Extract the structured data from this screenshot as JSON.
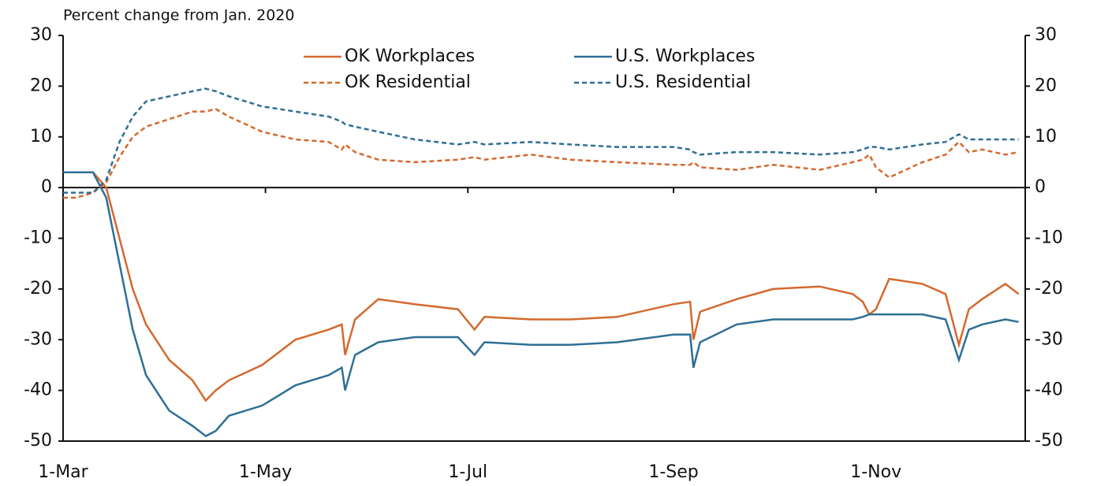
{
  "chart_data": {
    "type": "line",
    "ylabel": "Percent change from Jan. 2020",
    "x": [
      "1-Mar",
      "5-Mar",
      "10-Mar",
      "14-Mar",
      "18-Mar",
      "22-Mar",
      "26-Mar",
      "2-Apr",
      "9-Apr",
      "13-Apr",
      "16-Apr",
      "20-Apr",
      "30-Apr",
      "10-May",
      "20-May",
      "24-May",
      "25-May",
      "28-May",
      "4-Jun",
      "15-Jun",
      "28-Jun",
      "3-Jul",
      "6-Jul",
      "20-Jul",
      "1-Aug",
      "15-Aug",
      "1-Sep",
      "6-Sep",
      "7-Sep",
      "9-Sep",
      "20-Sep",
      "1-Oct",
      "15-Oct",
      "25-Oct",
      "28-Oct",
      "30-Oct",
      "1-Nov",
      "5-Nov",
      "15-Nov",
      "22-Nov",
      "26-Nov",
      "29-Nov",
      "3-Dec",
      "10-Dec",
      "14-Dec"
    ],
    "series": [
      {
        "name": "OK Workplaces",
        "color": "#d4692e",
        "style": "solid",
        "values": [
          3,
          3,
          3,
          0,
          -10,
          -20,
          -27,
          -34,
          -38,
          -42,
          -40,
          -38,
          -35,
          -30,
          -28,
          -27,
          -33,
          -26,
          -22,
          -23,
          -24,
          -28,
          -25.5,
          -26,
          -26,
          -25.5,
          -23,
          -22.5,
          -30,
          -24.5,
          -22,
          -20,
          -19.5,
          -21,
          -22.5,
          -25,
          -24,
          -18,
          -19,
          -21,
          -31,
          -24,
          -22,
          -19,
          -21
        ]
      },
      {
        "name": "U.S. Workplaces",
        "color": "#2e6f94",
        "style": "solid",
        "values": [
          3,
          3,
          3,
          -2,
          -15,
          -28,
          -37,
          -44,
          -47,
          -49,
          -48,
          -45,
          -43,
          -39,
          -37,
          -35.5,
          -40,
          -33,
          -30.5,
          -29.5,
          -29.5,
          -33,
          -30.5,
          -31,
          -31,
          -30.5,
          -29,
          -29,
          -35.5,
          -30.5,
          -27,
          -26,
          -26,
          -26,
          -25.5,
          -25,
          -25,
          -25,
          -25,
          -26,
          -34,
          -28,
          -27,
          -26,
          -26.5
        ]
      },
      {
        "name": "OK Residential",
        "color": "#d4692e",
        "style": "dashed",
        "values": [
          -2,
          -2,
          -1,
          1,
          6,
          10,
          12,
          13.5,
          15,
          15,
          15.5,
          14,
          11,
          9.5,
          9,
          7.5,
          8.5,
          7,
          5.5,
          5,
          5.5,
          6,
          5.5,
          6.5,
          5.5,
          5,
          4.5,
          4.5,
          5,
          4,
          3.5,
          4.5,
          3.5,
          5,
          5.5,
          6.5,
          4,
          2,
          5,
          6.5,
          9,
          7,
          7.5,
          6.5,
          7
        ]
      },
      {
        "name": "U.S. Residential",
        "color": "#2e6f94",
        "style": "dashed",
        "values": [
          -1,
          -1,
          -1,
          1.5,
          9,
          14,
          17,
          18,
          19,
          19.5,
          19,
          18,
          16,
          15,
          14,
          13,
          12.5,
          12,
          11,
          9.5,
          8.5,
          9,
          8.5,
          9,
          8.5,
          8,
          8,
          7.5,
          7,
          6.5,
          7,
          7,
          6.5,
          7,
          7.5,
          8,
          8,
          7.5,
          8.5,
          9,
          10.5,
          9.5,
          9.5,
          9.5,
          9.5
        ]
      }
    ],
    "xlim": [
      "1-Mar",
      "16-Dec"
    ],
    "xticks": [
      "1-Mar",
      "1-May",
      "1-Jul",
      "1-Sep",
      "1-Nov"
    ],
    "ylim": [
      -50,
      30
    ],
    "yticks": [
      -50,
      -40,
      -30,
      -20,
      -10,
      0,
      10,
      20,
      30
    ],
    "legend": "top"
  }
}
